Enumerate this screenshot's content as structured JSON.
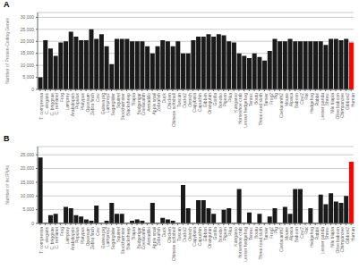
{
  "chart_data": [
    {
      "type": "bar",
      "title": "A",
      "ylabel": "Number of Protein-Coding Genes",
      "categories": [
        "T. compressa",
        "C. elegans",
        "C. briggsae",
        "C. remanei",
        "Frog",
        "Lamprey",
        "Arabidopsis",
        "Populus",
        "Platypus",
        "Opossum",
        "Zebra finch",
        "Cow",
        "Guinea pig",
        "Lamprey2",
        "Sugarglider",
        "Squirrel",
        "Stockhamster",
        "Blacksheep",
        "Tilapia",
        "Budgerigar",
        "Coelacanth",
        "Armadillo",
        "Apple snail",
        "Zebrafish",
        "Duck",
        "Chicken",
        "Chinese softshell",
        "Tuscan",
        "Ducks2",
        "Ostrich",
        "Capybara",
        "Capuchin",
        "Gibbon",
        "Orangutan",
        "Gorilla",
        "Bonobo",
        "Pigeon",
        "Pika",
        "Kangaroo",
        "Horseshoe crab",
        "Lesser hedgehog",
        "Tenrec",
        "Boutu",
        "Three-toed sloth",
        "Tarsier",
        "Frog2",
        "Pig",
        "Coelacanth2",
        "Mouse",
        "Alpaca",
        "Baboon",
        "Cow2",
        "Rat",
        "Hedgehog",
        "Rabbit",
        "Lesser panda",
        "Shrew",
        "Nile tilapia",
        "Olive baboon",
        "Chimpanzee",
        "Gibbon2",
        "Human"
      ],
      "values": [
        5000,
        20500,
        17000,
        14000,
        19500,
        20000,
        24000,
        22000,
        20500,
        20500,
        25000,
        21000,
        23000,
        18000,
        10500,
        21000,
        21000,
        21000,
        20000,
        20000,
        20000,
        18000,
        15000,
        18000,
        20500,
        20000,
        18000,
        20000,
        15000,
        15000,
        20500,
        22000,
        22000,
        23000,
        22000,
        23000,
        22500,
        20000,
        19500,
        15000,
        14000,
        13000,
        15000,
        13500,
        12000,
        16000,
        21000,
        20000,
        20000,
        21000,
        20000,
        20000,
        20000,
        20000,
        20000,
        20000,
        18500,
        21000,
        21000,
        20500,
        21000,
        19500
      ],
      "colors": [
        "#1a1a1a",
        "#1a1a1a",
        "#1a1a1a",
        "#1a1a1a",
        "#1a1a1a",
        "#1a1a1a",
        "#1a1a1a",
        "#1a1a1a",
        "#1a1a1a",
        "#1a1a1a",
        "#1a1a1a",
        "#1a1a1a",
        "#1a1a1a",
        "#1a1a1a",
        "#1a1a1a",
        "#1a1a1a",
        "#1a1a1a",
        "#1a1a1a",
        "#1a1a1a",
        "#1a1a1a",
        "#1a1a1a",
        "#1a1a1a",
        "#1a1a1a",
        "#1a1a1a",
        "#1a1a1a",
        "#1a1a1a",
        "#1a1a1a",
        "#1a1a1a",
        "#1a1a1a",
        "#1a1a1a",
        "#1a1a1a",
        "#1a1a1a",
        "#1a1a1a",
        "#1a1a1a",
        "#1a1a1a",
        "#1a1a1a",
        "#1a1a1a",
        "#1a1a1a",
        "#1a1a1a",
        "#1a1a1a",
        "#1a1a1a",
        "#1a1a1a",
        "#1a1a1a",
        "#1a1a1a",
        "#1a1a1a",
        "#1a1a1a",
        "#1a1a1a",
        "#1a1a1a",
        "#1a1a1a",
        "#1a1a1a",
        "#1a1a1a",
        "#1a1a1a",
        "#1a1a1a",
        "#1a1a1a",
        "#1a1a1a",
        "#1a1a1a",
        "#1a1a1a",
        "#1a1a1a",
        "#1a1a1a",
        "#1a1a1a",
        "#1a1a1a",
        "#FF0000"
      ],
      "ylim": [
        0,
        32000
      ],
      "yticks": [
        0,
        {
          "value": 5000,
          "label": "5,000"
        },
        {
          "value": 10000,
          "label": "10,000"
        },
        {
          "value": 15000,
          "label": "15,000"
        },
        {
          "value": 20000,
          "label": "20,000"
        },
        {
          "value": 25000,
          "label": "25,000"
        },
        {
          "value": 30000,
          "label": "30,000"
        }
      ],
      "grid": true
    },
    {
      "type": "bar",
      "title": "B",
      "ylabel": "Number of lncRNAs",
      "categories": [
        "T. compressa",
        "C. elegans",
        "C. briggsae",
        "C. remanei",
        "Frog",
        "Lamprey",
        "Arabidopsis",
        "Populus",
        "Platypus",
        "Opossum",
        "Zebra finch",
        "Cow",
        "Guinea pig",
        "Lamprey2",
        "Sugarglider",
        "Squirrel",
        "Stockhamster",
        "Blacksheep",
        "Tilapia",
        "Budgerigar",
        "Coelacanth",
        "Armadillo",
        "Apple snail",
        "Zebrafish",
        "Duck",
        "Chicken",
        "Chinese softshell",
        "Tuscan",
        "Ducks2",
        "Ostrich",
        "Capybara",
        "Capuchin",
        "Gibbon",
        "Orangutan",
        "Gorilla",
        "Bonobo",
        "Pigeon",
        "Pika",
        "Kangaroo",
        "Horseshoe crab",
        "Lesser hedgehog",
        "Tenrec",
        "Boutu",
        "Three-toed sloth",
        "Tarsier",
        "Frog2",
        "Pig",
        "Coelacanth2",
        "Mouse",
        "Alpaca",
        "Baboon",
        "Cow2",
        "Rat",
        "Hedgehog",
        "Rabbit",
        "Lesser panda",
        "Shrew",
        "Nile tilapia",
        "Olive baboon",
        "Chimpanzee",
        "Gibbon2",
        "Human"
      ],
      "values": [
        24000,
        200,
        3000,
        3500,
        200,
        6000,
        5500,
        3000,
        2500,
        1500,
        1000,
        6500,
        200,
        1000,
        7500,
        3500,
        3500,
        200,
        1000,
        1500,
        1000,
        200,
        7500,
        200,
        2000,
        1500,
        1000,
        200,
        14000,
        5500,
        200,
        8500,
        8500,
        5500,
        3500,
        200,
        5000,
        5500,
        200,
        12500,
        200,
        4000,
        200,
        3500,
        200,
        2500,
        5500,
        200,
        6000,
        3500,
        12500,
        12500,
        200,
        5500,
        200,
        10500,
        7000,
        11000,
        8000,
        7500,
        10000,
        22500
      ],
      "colors": [
        "#1a1a1a",
        "#1a1a1a",
        "#1a1a1a",
        "#1a1a1a",
        "#1a1a1a",
        "#1a1a1a",
        "#1a1a1a",
        "#1a1a1a",
        "#1a1a1a",
        "#1a1a1a",
        "#1a1a1a",
        "#1a1a1a",
        "#1a1a1a",
        "#1a1a1a",
        "#1a1a1a",
        "#1a1a1a",
        "#1a1a1a",
        "#1a1a1a",
        "#1a1a1a",
        "#1a1a1a",
        "#1a1a1a",
        "#1a1a1a",
        "#1a1a1a",
        "#1a1a1a",
        "#1a1a1a",
        "#1a1a1a",
        "#1a1a1a",
        "#1a1a1a",
        "#1a1a1a",
        "#1a1a1a",
        "#1a1a1a",
        "#1a1a1a",
        "#1a1a1a",
        "#1a1a1a",
        "#1a1a1a",
        "#1a1a1a",
        "#1a1a1a",
        "#1a1a1a",
        "#1a1a1a",
        "#1a1a1a",
        "#1a1a1a",
        "#1a1a1a",
        "#1a1a1a",
        "#1a1a1a",
        "#1a1a1a",
        "#1a1a1a",
        "#1a1a1a",
        "#1a1a1a",
        "#1a1a1a",
        "#1a1a1a",
        "#1a1a1a",
        "#1a1a1a",
        "#1a1a1a",
        "#1a1a1a",
        "#1a1a1a",
        "#1a1a1a",
        "#1a1a1a",
        "#1a1a1a",
        "#1a1a1a",
        "#1a1a1a",
        "#1a1a1a",
        "#FF0000"
      ],
      "ylim": [
        0,
        28000
      ],
      "yticks": [
        0,
        {
          "value": 5000,
          "label": "5,000"
        },
        {
          "value": 10000,
          "label": "10,000"
        },
        {
          "value": 15000,
          "label": "15,000"
        },
        {
          "value": 20000,
          "label": "20,000"
        },
        {
          "value": 25000,
          "label": "25,000"
        }
      ],
      "grid": true
    }
  ]
}
